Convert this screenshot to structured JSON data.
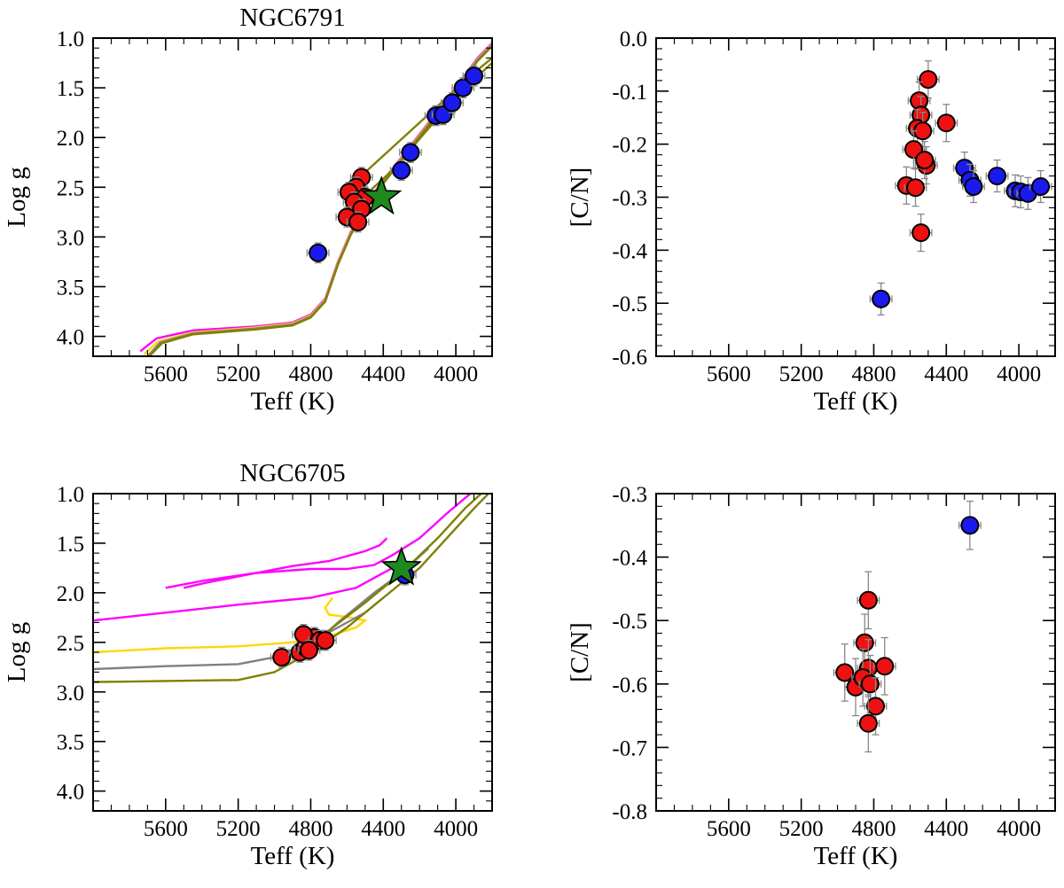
{
  "chart_data": [
    {
      "id": "p1",
      "type": "scatter",
      "title": "NGC6791",
      "xlabel": "Teff (K)",
      "ylabel": "Log g",
      "xlim": [
        6000,
        3800
      ],
      "ylim": [
        4.2,
        1.0
      ],
      "xticks": [
        5600,
        5200,
        4800,
        4400,
        4000
      ],
      "xtick_labels": [
        "5600",
        "5200",
        "4800",
        "4400",
        "4000"
      ],
      "yticks": [
        1.0,
        1.5,
        2.0,
        2.5,
        3.0,
        3.5,
        4.0
      ],
      "ytick_labels": [
        "1.0",
        "1.5",
        "2.0",
        "2.5",
        "3.0",
        "3.5",
        "4.0"
      ],
      "tracks": [
        {
          "color": "#ff00ff",
          "points": [
            [
              5740,
              4.15
            ],
            [
              5650,
              4.02
            ],
            [
              5450,
              3.94
            ],
            [
              5100,
              3.9
            ],
            [
              4900,
              3.86
            ],
            [
              4800,
              3.78
            ],
            [
              4720,
              3.62
            ],
            [
              4650,
              3.25
            ],
            [
              4580,
              2.95
            ],
            [
              4450,
              2.55
            ],
            [
              4300,
              2.2
            ],
            [
              4150,
              1.85
            ],
            [
              4000,
              1.5
            ],
            [
              3880,
              1.2
            ],
            [
              3800,
              1.05
            ]
          ]
        },
        {
          "color": "#ffd700",
          "points": [
            [
              5720,
              4.18
            ],
            [
              5640,
              4.05
            ],
            [
              5450,
              3.96
            ],
            [
              5100,
              3.91
            ],
            [
              4900,
              3.87
            ],
            [
              4800,
              3.79
            ],
            [
              4720,
              3.63
            ],
            [
              4650,
              3.26
            ],
            [
              4580,
              2.96
            ],
            [
              4450,
              2.56
            ],
            [
              4300,
              2.21
            ],
            [
              4150,
              1.86
            ],
            [
              4000,
              1.51
            ],
            [
              3880,
              1.21
            ],
            [
              3800,
              1.06
            ]
          ]
        },
        {
          "color": "#808080",
          "points": [
            [
              5700,
              4.2
            ],
            [
              5630,
              4.06
            ],
            [
              5450,
              3.97
            ],
            [
              5100,
              3.92
            ],
            [
              4900,
              3.88
            ],
            [
              4800,
              3.8
            ],
            [
              4720,
              3.64
            ],
            [
              4650,
              3.27
            ],
            [
              4580,
              2.97
            ],
            [
              4450,
              2.57
            ],
            [
              4300,
              2.22
            ],
            [
              4150,
              1.87
            ],
            [
              4000,
              1.52
            ],
            [
              3880,
              1.22
            ],
            [
              3800,
              1.07
            ]
          ]
        },
        {
          "color": "#808000",
          "points": [
            [
              5690,
              4.2
            ],
            [
              5620,
              4.07
            ],
            [
              5450,
              3.98
            ],
            [
              5100,
              3.93
            ],
            [
              4900,
              3.89
            ],
            [
              4800,
              3.81
            ],
            [
              4720,
              3.65
            ],
            [
              4650,
              3.28
            ],
            [
              4580,
              2.98
            ],
            [
              4450,
              2.58
            ],
            [
              4300,
              2.23
            ],
            [
              4150,
              1.88
            ],
            [
              4000,
              1.53
            ],
            [
              3880,
              1.23
            ],
            [
              3800,
              1.08
            ]
          ]
        },
        {
          "color": "#808000",
          "points": [
            [
              4600,
              2.75
            ],
            [
              4500,
              2.58
            ],
            [
              4380,
              2.38
            ],
            [
              4250,
              2.12
            ],
            [
              4100,
              1.8
            ],
            [
              3950,
              1.5
            ],
            [
              3800,
              1.25
            ]
          ]
        },
        {
          "color": "#808000",
          "points": [
            [
              4620,
              2.55
            ],
            [
              4500,
              2.35
            ],
            [
              4380,
              2.15
            ],
            [
              4200,
              1.85
            ],
            [
              4050,
              1.6
            ],
            [
              3900,
              1.35
            ],
            [
              3800,
              1.2
            ]
          ]
        }
      ],
      "series": [
        {
          "name": "red",
          "color": "#ee1111",
          "points": [
            [
              4520,
              2.4
            ],
            [
              4550,
              2.5
            ],
            [
              4590,
              2.55
            ],
            [
              4500,
              2.6
            ],
            [
              4560,
              2.65
            ],
            [
              4520,
              2.72
            ],
            [
              4600,
              2.8
            ],
            [
              4540,
              2.85
            ]
          ],
          "xerr": 60,
          "yerr": 0.1
        },
        {
          "name": "blue",
          "color": "#1a1aee",
          "points": [
            [
              4760,
              3.16
            ],
            [
              4300,
              2.33
            ],
            [
              4250,
              2.15
            ],
            [
              4110,
              1.78
            ],
            [
              4070,
              1.77
            ],
            [
              4020,
              1.65
            ],
            [
              3960,
              1.5
            ],
            [
              3900,
              1.38
            ]
          ],
          "xerr": 60,
          "yerr": 0.1
        }
      ],
      "star": {
        "color": "#1e8a1e",
        "x": 4410,
        "y": 2.6
      }
    },
    {
      "id": "p2",
      "type": "scatter",
      "title": "",
      "xlabel": "Teff (K)",
      "ylabel": "[C/N]",
      "xlim": [
        6000,
        3800
      ],
      "ylim": [
        -0.6,
        0.0
      ],
      "xticks": [
        5600,
        5200,
        4800,
        4400,
        4000
      ],
      "xtick_labels": [
        "5600",
        "5200",
        "4800",
        "4400",
        "4000"
      ],
      "yticks": [
        0.0,
        -0.1,
        -0.2,
        -0.3,
        -0.4,
        -0.5,
        -0.6
      ],
      "ytick_labels": [
        "0.0",
        "-0.1",
        "-0.2",
        "-0.3",
        "-0.4",
        "-0.5",
        "-0.6"
      ],
      "tracks": [],
      "series": [
        {
          "name": "red",
          "color": "#ee1111",
          "points": [
            [
              4500,
              -0.078
            ],
            [
              4550,
              -0.118
            ],
            [
              4540,
              -0.145
            ],
            [
              4560,
              -0.17
            ],
            [
              4530,
              -0.175
            ],
            [
              4580,
              -0.21
            ],
            [
              4510,
              -0.24
            ],
            [
              4520,
              -0.23
            ],
            [
              4400,
              -0.16
            ],
            [
              4620,
              -0.278
            ],
            [
              4570,
              -0.282
            ],
            [
              4540,
              -0.367
            ]
          ],
          "xerr": 60,
          "yerr": 0.035
        },
        {
          "name": "blue",
          "color": "#1a1aee",
          "points": [
            [
              4760,
              -0.492
            ],
            [
              4300,
              -0.245
            ],
            [
              4270,
              -0.268
            ],
            [
              4250,
              -0.28
            ],
            [
              4120,
              -0.26
            ],
            [
              4020,
              -0.288
            ],
            [
              3990,
              -0.29
            ],
            [
              3950,
              -0.293
            ],
            [
              3880,
              -0.28
            ]
          ],
          "xerr": 60,
          "yerr": 0.03
        }
      ],
      "star": null
    },
    {
      "id": "p3",
      "type": "scatter",
      "title": "NGC6705",
      "xlabel": "Teff (K)",
      "ylabel": "Log g",
      "xlim": [
        6000,
        3800
      ],
      "ylim": [
        4.2,
        1.0
      ],
      "xticks": [
        5600,
        5200,
        4800,
        4400,
        4000
      ],
      "xtick_labels": [
        "5600",
        "5200",
        "4800",
        "4400",
        "4000"
      ],
      "yticks": [
        1.0,
        1.5,
        2.0,
        2.5,
        3.0,
        3.5,
        4.0
      ],
      "ytick_labels": [
        "1.0",
        "1.5",
        "2.0",
        "2.5",
        "3.0",
        "3.5",
        "4.0"
      ],
      "tracks": [
        {
          "color": "#ff00ff",
          "points": [
            [
              5600,
              1.95
            ],
            [
              5400,
              1.88
            ],
            [
              5100,
              1.8
            ],
            [
              4800,
              1.76
            ],
            [
              4600,
              1.76
            ],
            [
              4450,
              1.72
            ],
            [
              4350,
              1.62
            ],
            [
              4200,
              1.45
            ],
            [
              4050,
              1.2
            ],
            [
              3920,
              1.0
            ]
          ]
        },
        {
          "color": "#ff00ff",
          "points": [
            [
              6000,
              2.28
            ],
            [
              5600,
              2.2
            ],
            [
              5200,
              2.12
            ],
            [
              4800,
              2.05
            ],
            [
              4550,
              1.95
            ],
            [
              4450,
              1.85
            ],
            [
              4380,
              1.78
            ],
            [
              4320,
              1.72
            ]
          ]
        },
        {
          "color": "#ff00ff",
          "points": [
            [
              5500,
              1.95
            ],
            [
              5380,
              1.9
            ],
            [
              5100,
              1.8
            ],
            [
              4900,
              1.73
            ],
            [
              4700,
              1.68
            ],
            [
              4500,
              1.58
            ],
            [
              4420,
              1.52
            ],
            [
              4380,
              1.45
            ]
          ]
        },
        {
          "color": "#ffd700",
          "points": [
            [
              6000,
              2.6
            ],
            [
              5600,
              2.56
            ],
            [
              5200,
              2.54
            ],
            [
              4900,
              2.5
            ],
            [
              4700,
              2.44
            ],
            [
              4550,
              2.35
            ],
            [
              4500,
              2.28
            ],
            [
              4580,
              2.25
            ],
            [
              4700,
              2.22
            ],
            [
              4720,
              2.15
            ],
            [
              4680,
              2.05
            ]
          ]
        },
        {
          "color": "#808080",
          "points": [
            [
              6000,
              2.77
            ],
            [
              5600,
              2.74
            ],
            [
              5200,
              2.72
            ],
            [
              5000,
              2.65
            ],
            [
              4800,
              2.5
            ],
            [
              4650,
              2.35
            ],
            [
              4500,
              2.2
            ],
            [
              4400,
              2.05
            ]
          ]
        },
        {
          "color": "#808080",
          "points": [
            [
              4800,
              2.55
            ],
            [
              4650,
              2.3
            ],
            [
              4450,
              2.0
            ],
            [
              4300,
              1.8
            ],
            [
              4150,
              1.55
            ]
          ]
        },
        {
          "color": "#808000",
          "points": [
            [
              6000,
              2.9
            ],
            [
              5600,
              2.89
            ],
            [
              5200,
              2.88
            ],
            [
              5000,
              2.8
            ],
            [
              4800,
              2.6
            ],
            [
              4600,
              2.35
            ],
            [
              4400,
              2.05
            ],
            [
              4200,
              1.75
            ],
            [
              4050,
              1.45
            ],
            [
              3900,
              1.15
            ],
            [
              3820,
              1.0
            ]
          ]
        },
        {
          "color": "#808000",
          "points": [
            [
              4900,
              2.62
            ],
            [
              4700,
              2.38
            ],
            [
              4500,
              2.1
            ],
            [
              4300,
              1.8
            ],
            [
              4100,
              1.45
            ],
            [
              3950,
              1.15
            ],
            [
              3860,
              1.0
            ]
          ]
        }
      ],
      "series": [
        {
          "name": "red",
          "color": "#ee1111",
          "points": [
            [
              4960,
              2.65
            ],
            [
              4860,
              2.6
            ],
            [
              4830,
              2.55
            ],
            [
              4800,
              2.5
            ],
            [
              4780,
              2.45
            ],
            [
              4840,
              2.42
            ],
            [
              4750,
              2.48
            ],
            [
              4720,
              2.48
            ],
            [
              4810,
              2.58
            ]
          ],
          "xerr": 60,
          "yerr": 0.1
        },
        {
          "name": "blue",
          "color": "#1a1aee",
          "points": [
            [
              4280,
              1.82
            ]
          ],
          "xerr": 60,
          "yerr": 0.1
        }
      ],
      "star": {
        "color": "#1e8a1e",
        "x": 4300,
        "y": 1.75
      }
    },
    {
      "id": "p4",
      "type": "scatter",
      "title": "",
      "xlabel": "Teff (K)",
      "ylabel": "[C/N]",
      "xlim": [
        6000,
        3800
      ],
      "ylim": [
        -0.8,
        -0.3
      ],
      "xticks": [
        5600,
        5200,
        4800,
        4400,
        4000
      ],
      "xtick_labels": [
        "5600",
        "5200",
        "4800",
        "4400",
        "4000"
      ],
      "yticks": [
        -0.3,
        -0.4,
        -0.5,
        -0.6,
        -0.7,
        -0.8
      ],
      "ytick_labels": [
        "-0.3",
        "-0.4",
        "-0.5",
        "-0.6",
        "-0.7",
        "-0.8"
      ],
      "tracks": [],
      "series": [
        {
          "name": "red",
          "color": "#ee1111",
          "points": [
            [
              4830,
              -0.468
            ],
            [
              4850,
              -0.535
            ],
            [
              4830,
              -0.575
            ],
            [
              4740,
              -0.572
            ],
            [
              4960,
              -0.582
            ],
            [
              4900,
              -0.605
            ],
            [
              4860,
              -0.59
            ],
            [
              4820,
              -0.6
            ],
            [
              4790,
              -0.635
            ],
            [
              4830,
              -0.662
            ]
          ],
          "xerr": 60,
          "yerr": 0.045
        },
        {
          "name": "blue",
          "color": "#1a1aee",
          "points": [
            [
              4270,
              -0.35
            ]
          ],
          "xerr": 60,
          "yerr": 0.038
        }
      ],
      "star": null
    }
  ]
}
